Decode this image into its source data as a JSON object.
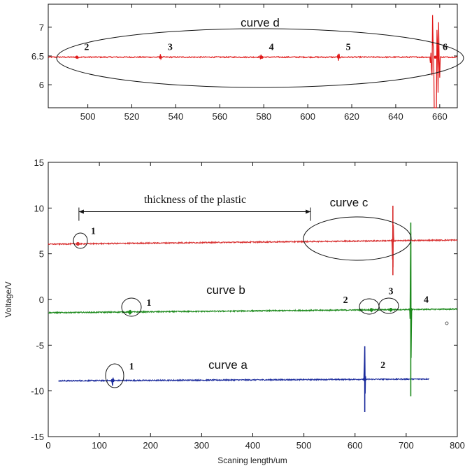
{
  "chart_data": [
    {
      "type": "line",
      "panel": "top",
      "xlim": [
        482,
        668
      ],
      "ylim": [
        5.6,
        7.4
      ],
      "x_ticks": [
        500,
        520,
        540,
        560,
        580,
        600,
        620,
        640,
        660
      ],
      "y_ticks": [
        6,
        6.5,
        7
      ],
      "x_tick_labels": [
        "500",
        "520",
        "540",
        "560",
        "580",
        "600",
        "620",
        "640",
        "660"
      ],
      "y_tick_labels": [
        "6",
        "6.5",
        "7"
      ],
      "baseline": 6.48,
      "color": "#e01818",
      "grid": false,
      "annotation_title": "curve d",
      "peaks": [
        {
          "label": "2",
          "x": 495,
          "amp": 0.05
        },
        {
          "label": "3",
          "x": 533,
          "amp": 0.06
        },
        {
          "label": "4",
          "x": 579,
          "amp": 0.08
        },
        {
          "label": "5",
          "x": 614,
          "amp": 0.07
        },
        {
          "label": "6",
          "x": 658,
          "amp": 1.0
        }
      ]
    },
    {
      "type": "line",
      "panel": "bottom",
      "xlabel": "Scaning length/um",
      "ylabel": "Voltage/V",
      "xlim": [
        0,
        800
      ],
      "ylim": [
        -15,
        15
      ],
      "x_ticks": [
        0,
        100,
        200,
        300,
        400,
        500,
        600,
        700,
        800
      ],
      "y_ticks": [
        -15,
        -10,
        -5,
        0,
        5,
        10,
        15
      ],
      "x_tick_labels": [
        "0",
        "100",
        "200",
        "300",
        "400",
        "500",
        "600",
        "700",
        "800"
      ],
      "y_tick_labels": [
        "-15",
        "-10",
        "-5",
        "0",
        "5",
        "10",
        "15"
      ],
      "grid": false,
      "series": [
        {
          "name": "curve a",
          "color": "#1a2a9c",
          "x_range": [
            20,
            745
          ],
          "baseline": -8.9,
          "end_value": -8.7,
          "peaks": [
            {
              "label": "1",
              "x": 126,
              "amp": 0.6
            },
            {
              "label": "2",
              "x": 619,
              "amp": 3.6
            }
          ]
        },
        {
          "name": "curve b",
          "color": "#1d8a1d",
          "x_range": [
            0,
            800
          ],
          "baseline": -1.45,
          "end_value": -1.05,
          "peaks": [
            {
              "label": "1",
              "x": 160,
              "amp": 0.3
            },
            {
              "label": "2",
              "x": 632,
              "amp": 0.2
            },
            {
              "label": "3",
              "x": 670,
              "amp": 0.25
            },
            {
              "label": "4",
              "x": 709,
              "amp": 9.5
            }
          ]
        },
        {
          "name": "curve c",
          "color": "#d83030",
          "x_range": [
            0,
            800
          ],
          "baseline": 6.05,
          "end_value": 6.5,
          "peaks": [
            {
              "label": "1",
              "x": 58,
              "amp": 0.15
            },
            {
              "label": "",
              "x": 674,
              "amp": 3.8
            }
          ]
        }
      ],
      "annotations": {
        "thickness_label": "thickness of the plastic",
        "thickness_from": 60,
        "thickness_to": 513,
        "thickness_y": 9.6
      }
    }
  ]
}
